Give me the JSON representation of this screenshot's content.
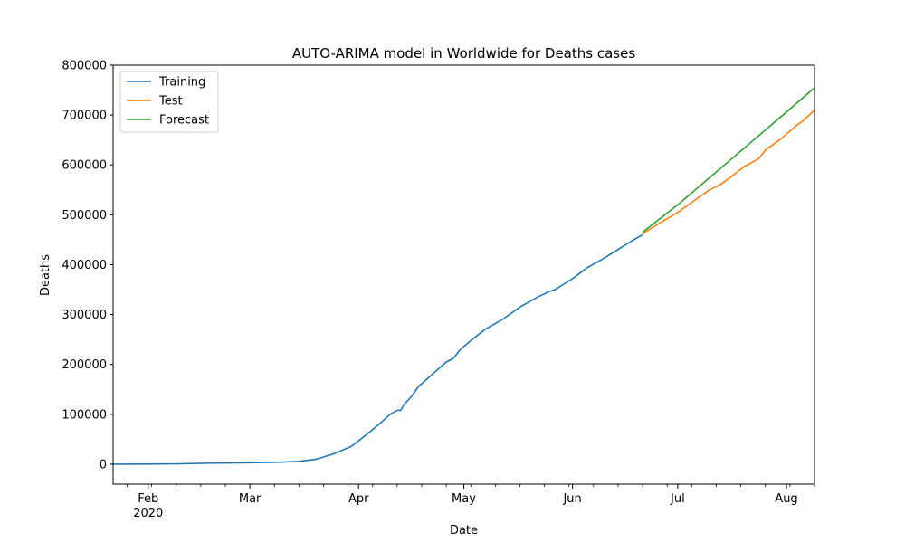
{
  "chart_data": {
    "type": "line",
    "title": "AUTO-ARIMA model in Worldwide for Deaths cases",
    "xlabel": "Date",
    "ylabel": "Deaths",
    "xlim": [
      "2020-01-22",
      "2020-08-09"
    ],
    "ylim": [
      -40000,
      800000
    ],
    "x_major_ticks": [
      {
        "date": "2020-02-01",
        "label": "Feb",
        "sublabel": "2020"
      },
      {
        "date": "2020-03-01",
        "label": "Mar"
      },
      {
        "date": "2020-04-01",
        "label": "Apr"
      },
      {
        "date": "2020-05-01",
        "label": "May"
      },
      {
        "date": "2020-06-01",
        "label": "Jun"
      },
      {
        "date": "2020-07-01",
        "label": "Jul"
      },
      {
        "date": "2020-08-01",
        "label": "Aug"
      }
    ],
    "y_ticks": [
      0,
      100000,
      200000,
      300000,
      400000,
      500000,
      600000,
      700000,
      800000
    ],
    "grid": false,
    "legend": "top-left",
    "series": [
      {
        "name": "Training",
        "color": "#1f77b4",
        "points": [
          [
            "2020-01-22",
            17
          ],
          [
            "2020-02-01",
            259
          ],
          [
            "2020-02-10",
            910
          ],
          [
            "2020-02-20",
            2250
          ],
          [
            "2020-03-01",
            3000
          ],
          [
            "2020-03-10",
            4000
          ],
          [
            "2020-03-15",
            5800
          ],
          [
            "2020-03-20",
            10000
          ],
          [
            "2020-03-25",
            21000
          ],
          [
            "2020-03-30",
            36000
          ],
          [
            "2020-04-03",
            58000
          ],
          [
            "2020-04-07",
            81000
          ],
          [
            "2020-04-10",
            100000
          ],
          [
            "2020-04-12",
            108000
          ],
          [
            "2020-04-13",
            108000
          ],
          [
            "2020-04-14",
            120000
          ],
          [
            "2020-04-16",
            135000
          ],
          [
            "2020-04-18",
            155000
          ],
          [
            "2020-04-22",
            180000
          ],
          [
            "2020-04-26",
            205000
          ],
          [
            "2020-04-28",
            212000
          ],
          [
            "2020-04-30",
            230000
          ],
          [
            "2020-05-03",
            248000
          ],
          [
            "2020-05-07",
            270000
          ],
          [
            "2020-05-12",
            290000
          ],
          [
            "2020-05-17",
            315000
          ],
          [
            "2020-05-22",
            335000
          ],
          [
            "2020-05-25",
            345000
          ],
          [
            "2020-05-27",
            350000
          ],
          [
            "2020-06-01",
            372000
          ],
          [
            "2020-06-05",
            393000
          ],
          [
            "2020-06-10",
            413000
          ],
          [
            "2020-06-15",
            435000
          ],
          [
            "2020-06-18",
            448000
          ],
          [
            "2020-06-21",
            460000
          ]
        ]
      },
      {
        "name": "Test",
        "color": "#ff7f0e",
        "points": [
          [
            "2020-06-21",
            462000
          ],
          [
            "2020-06-25",
            480000
          ],
          [
            "2020-07-01",
            505000
          ],
          [
            "2020-07-05",
            525000
          ],
          [
            "2020-07-10",
            550000
          ],
          [
            "2020-07-13",
            560000
          ],
          [
            "2020-07-16",
            575000
          ],
          [
            "2020-07-20",
            597000
          ],
          [
            "2020-07-24",
            612000
          ],
          [
            "2020-07-26",
            630000
          ],
          [
            "2020-07-30",
            650000
          ],
          [
            "2020-08-04",
            680000
          ],
          [
            "2020-08-06",
            690000
          ],
          [
            "2020-08-09",
            710000
          ],
          [
            "2020-08-12",
            727000
          ]
        ]
      },
      {
        "name": "Forecast",
        "color": "#2ca02c",
        "points": [
          [
            "2020-06-21",
            465000
          ],
          [
            "2020-07-01",
            520000
          ],
          [
            "2020-07-11",
            580000
          ],
          [
            "2020-07-21",
            640000
          ],
          [
            "2020-07-31",
            700000
          ],
          [
            "2020-08-11",
            767000
          ]
        ]
      }
    ]
  }
}
